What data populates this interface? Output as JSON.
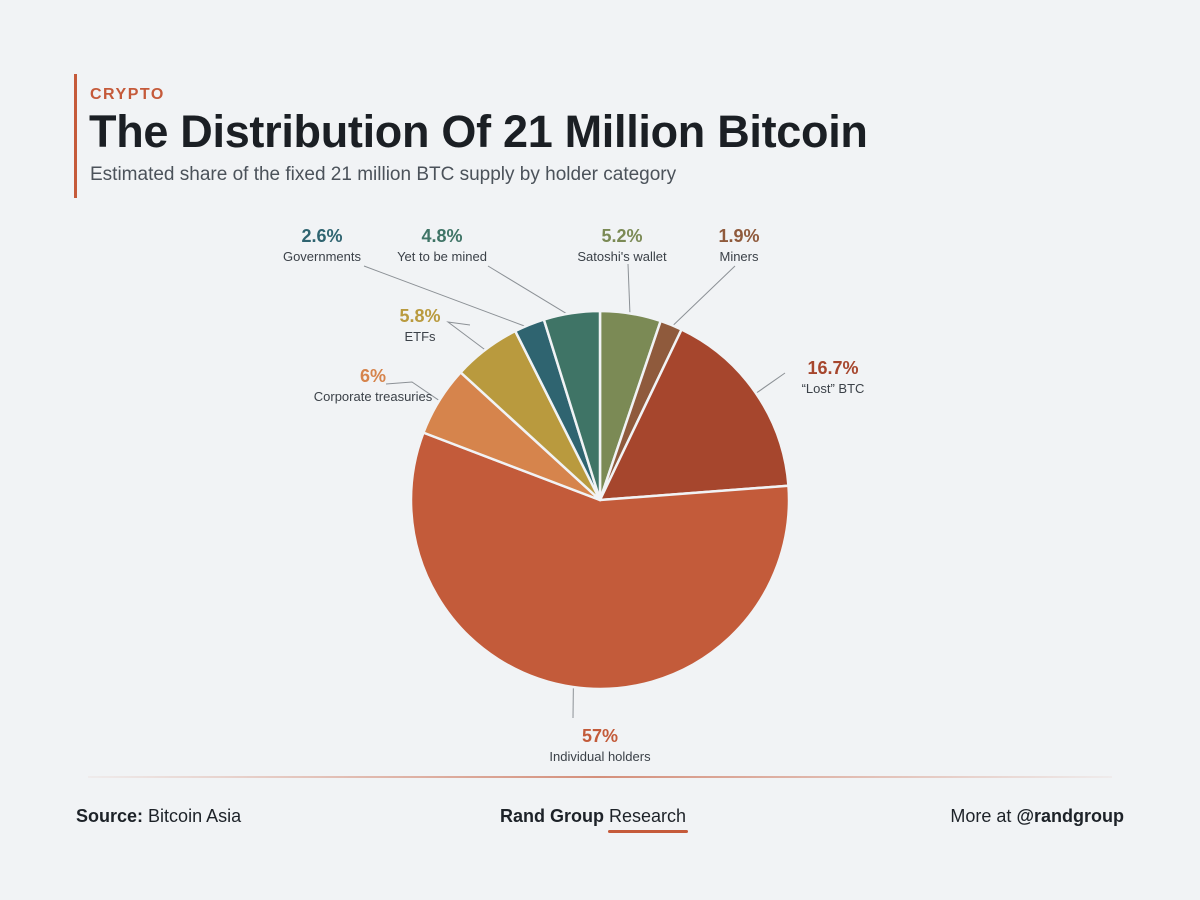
{
  "header": {
    "kicker": "CRYPTO",
    "title": "The Distribution Of 21 Million Bitcoin",
    "subtitle": "Estimated share of the fixed 21 million BTC supply by holder category"
  },
  "chart_data": {
    "type": "pie",
    "title": "The Distribution Of 21 Million Bitcoin",
    "subtitle": "Estimated share of the fixed 21 million BTC supply by holder category",
    "slices": [
      {
        "label": "Satoshi's wallet",
        "value": 5.2,
        "value_label": "5.2%",
        "color": "#7b8a55"
      },
      {
        "label": "Miners",
        "value": 1.9,
        "value_label": "1.9%",
        "color": "#8f5a3c"
      },
      {
        "label": "“Lost” BTC",
        "value": 16.7,
        "value_label": "16.7%",
        "color": "#a6462d"
      },
      {
        "label": "Individual holders",
        "value": 57,
        "value_label": "57%",
        "color": "#c35b3a"
      },
      {
        "label": "Corporate treasuries",
        "value": 6,
        "value_label": "6%",
        "color": "#d6844c"
      },
      {
        "label": "ETFs",
        "value": 5.8,
        "value_label": "5.8%",
        "color": "#b99a3e"
      },
      {
        "label": "Governments",
        "value": 2.6,
        "value_label": "2.6%",
        "color": "#2f6470"
      },
      {
        "label": "Yet to be mined",
        "value": 4.8,
        "value_label": "4.8%",
        "color": "#3f7466"
      }
    ],
    "start_angle": "top (12 o'clock)",
    "direction": "clockwise",
    "labels": "outside with leader lines"
  },
  "footer": {
    "source_label": "Source:",
    "source_value": "Bitcoin Asia",
    "brand_bold": "Rand Group",
    "brand_light": "Research",
    "more_label": "More at",
    "handle": "@randgroup"
  }
}
